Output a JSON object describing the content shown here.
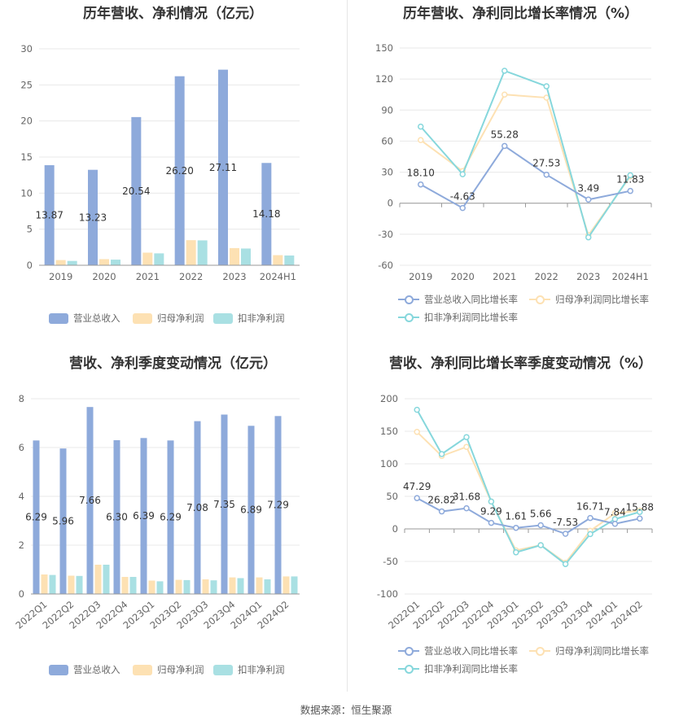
{
  "colors": {
    "revenue": "#8eaadb",
    "parent": "#fde1b3",
    "deducted": "#a9e0e3",
    "revenue_line": "#8eaadb",
    "parent_line": "#fde1b3",
    "deducted_line": "#86d7dc",
    "grid": "#e8e8e8",
    "axis": "#999999"
  },
  "source": "数据来源：恒生聚源",
  "chart_data": [
    {
      "type": "bar",
      "title": "历年营收、净利情况（亿元）",
      "categories": [
        "2019",
        "2020",
        "2021",
        "2022",
        "2023",
        "2024H1"
      ],
      "ylim": [
        0,
        30
      ],
      "yticks": [
        0,
        5,
        10,
        15,
        20,
        25,
        30
      ],
      "series": [
        {
          "name": "营业总收入",
          "values": [
            13.87,
            13.23,
            20.54,
            26.2,
            27.11,
            14.18
          ],
          "labels": [
            "13.87",
            "13.23",
            "20.54",
            "26.20",
            "27.11",
            "14.18"
          ]
        },
        {
          "name": "归母净利润",
          "values": [
            0.72,
            0.85,
            1.75,
            3.48,
            2.38,
            1.4
          ]
        },
        {
          "name": "扣非净利润",
          "values": [
            0.6,
            0.78,
            1.65,
            3.45,
            2.32,
            1.35
          ]
        }
      ]
    },
    {
      "type": "line",
      "title": "历年营收、净利同比增长率情况（%）",
      "categories": [
        "2019",
        "2020",
        "2021",
        "2022",
        "2023",
        "2024H1"
      ],
      "ylim": [
        -60,
        150
      ],
      "yticks": [
        -60,
        -30,
        0,
        30,
        60,
        90,
        120,
        150
      ],
      "series": [
        {
          "name": "营业总收入同比增长率",
          "values": [
            18.1,
            -4.63,
            55.28,
            27.53,
            3.49,
            11.83
          ],
          "labels": [
            "18.10",
            "-4.63",
            "55.28",
            "27.53",
            "3.49",
            "11.83"
          ]
        },
        {
          "name": "归母净利润同比增长率",
          "values": [
            61.0,
            31.0,
            105.0,
            102.0,
            -31.0,
            26.0
          ]
        },
        {
          "name": "扣非净利润同比增长率",
          "values": [
            74.0,
            28.0,
            128.0,
            113.0,
            -33.0,
            27.0
          ]
        }
      ]
    },
    {
      "type": "bar",
      "title": "营收、净利季度变动情况（亿元）",
      "categories": [
        "2022Q1",
        "2022Q2",
        "2022Q3",
        "2022Q4",
        "2023Q1",
        "2023Q2",
        "2023Q3",
        "2023Q4",
        "2024Q1",
        "2024Q2"
      ],
      "ylim": [
        0,
        8
      ],
      "yticks": [
        0,
        2,
        4,
        6,
        8
      ],
      "series": [
        {
          "name": "营业总收入",
          "values": [
            6.29,
            5.96,
            7.66,
            6.3,
            6.39,
            6.29,
            7.08,
            7.35,
            6.89,
            7.29
          ],
          "labels": [
            "6.29",
            "5.96",
            "7.66",
            "6.30",
            "6.39",
            "6.29",
            "7.08",
            "7.35",
            "6.89",
            "7.29"
          ]
        },
        {
          "name": "归母净利润",
          "values": [
            0.8,
            0.75,
            1.2,
            0.7,
            0.55,
            0.58,
            0.6,
            0.68,
            0.68,
            0.72
          ]
        },
        {
          "name": "扣非净利润",
          "values": [
            0.78,
            0.74,
            1.2,
            0.7,
            0.52,
            0.57,
            0.56,
            0.65,
            0.6,
            0.72
          ]
        }
      ]
    },
    {
      "type": "line",
      "title": "营收、净利同比增长率季度变动情况（%）",
      "categories": [
        "2022Q1",
        "2022Q2",
        "2022Q3",
        "2022Q4",
        "2023Q1",
        "2023Q2",
        "2023Q3",
        "2023Q4",
        "2024Q1",
        "2024Q2"
      ],
      "ylim": [
        -100,
        200
      ],
      "yticks": [
        -100,
        -50,
        0,
        50,
        100,
        150,
        200
      ],
      "series": [
        {
          "name": "营业总收入同比增长率",
          "values": [
            47.29,
            26.82,
            31.68,
            9.29,
            1.61,
            5.66,
            -7.53,
            16.71,
            7.84,
            15.88
          ],
          "labels": [
            "47.29",
            "26.82",
            "31.68",
            "9.29",
            "1.61",
            "5.66",
            "-7.53",
            "16.71",
            "7.84",
            "15.88"
          ]
        },
        {
          "name": "归母净利润同比增长率",
          "values": [
            149.0,
            112.0,
            126.0,
            42.0,
            -33.0,
            -25.0,
            -52.0,
            -3.0,
            24.0,
            28.0
          ]
        },
        {
          "name": "扣非净利润同比增长率",
          "values": [
            183.0,
            115.0,
            141.0,
            42.0,
            -36.0,
            -25.0,
            -54.0,
            -8.0,
            15.0,
            26.0
          ]
        }
      ]
    }
  ]
}
